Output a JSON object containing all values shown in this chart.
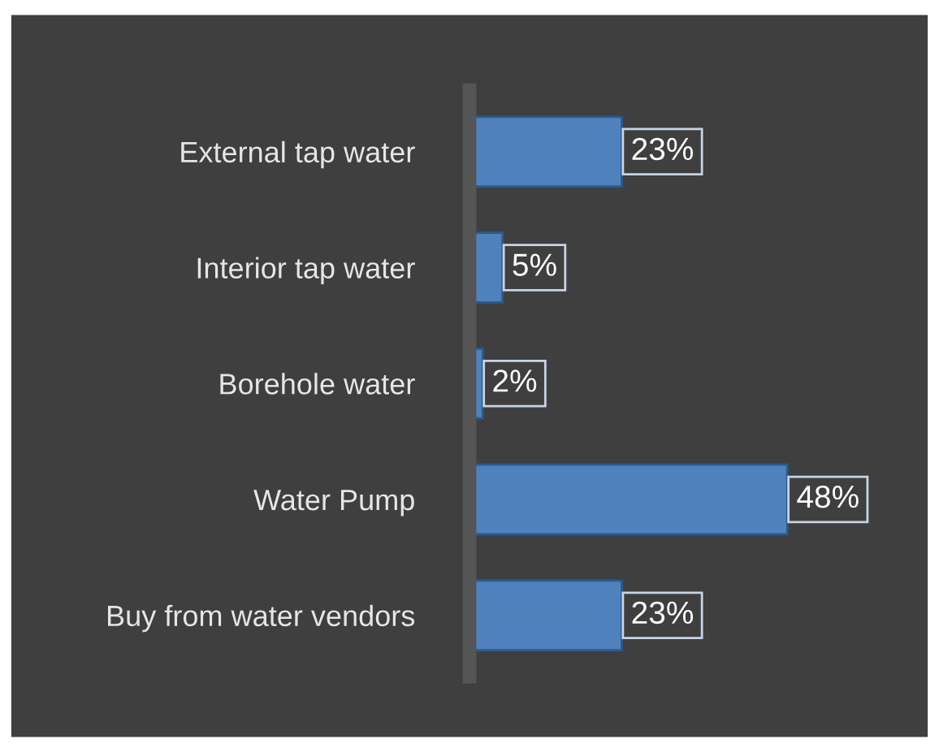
{
  "chart_data": {
    "type": "bar",
    "orientation": "horizontal",
    "categories": [
      "External tap water",
      "Interior tap water",
      "Borehole water",
      "Water Pump",
      "Buy from water vendors"
    ],
    "values": [
      23,
      5,
      2,
      48,
      23
    ],
    "value_labels": [
      "23%",
      "5%",
      "2%",
      "48%",
      "23%"
    ],
    "color": "#4f81bd",
    "grid": false,
    "legend": false
  }
}
